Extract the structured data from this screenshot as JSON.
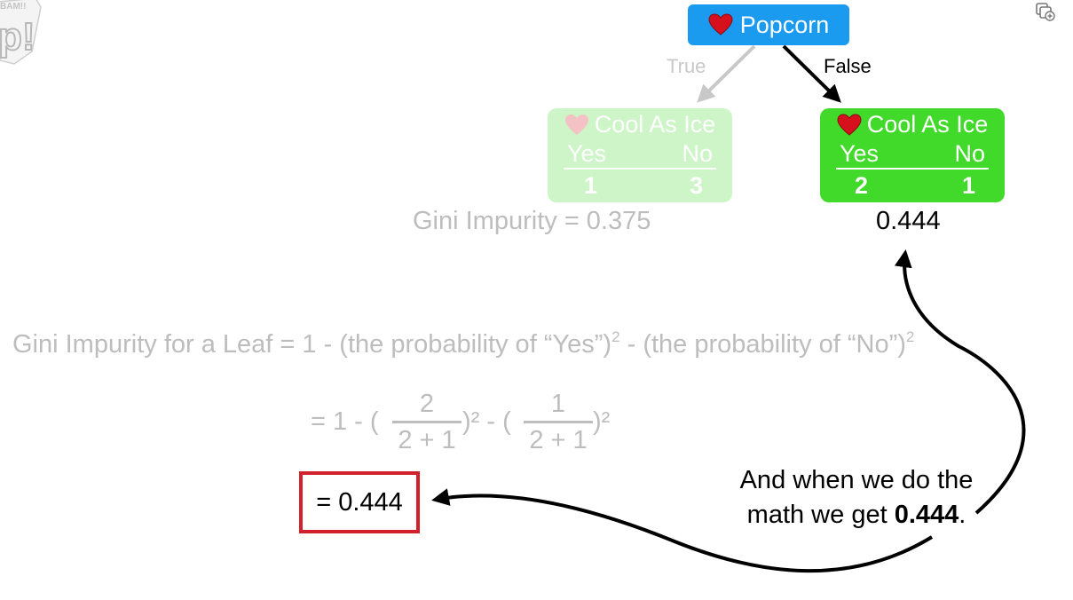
{
  "tree": {
    "root": {
      "label": "Popcorn"
    },
    "branches": {
      "true_label": "True",
      "false_label": "False"
    },
    "leaf_true": {
      "title": "Cool As Ice",
      "yes_label": "Yes",
      "no_label": "No",
      "yes_count": "1",
      "no_count": "3",
      "gini": "Gini Impurity = 0.375"
    },
    "leaf_false": {
      "title": "Cool As Ice",
      "yes_label": "Yes",
      "no_label": "No",
      "yes_count": "2",
      "no_count": "1",
      "gini": "0.444"
    }
  },
  "formula": {
    "part1": "Gini Impurity for a Leaf = 1 - (the probability of “Yes”)",
    "exp1": "2",
    "part2": " - (the probability of “No”)",
    "exp2": "2"
  },
  "math": {
    "prefix": "= 1 - (",
    "frac1_num": "2",
    "frac1_den": "2 + 1",
    "mid": ")² - (",
    "frac2_num": "1",
    "frac2_den": "2 + 1",
    "suffix": ")²"
  },
  "result": "= 0.444",
  "caption": {
    "line1": "And when we do the",
    "line2_prefix": "math we get ",
    "line2_bold": "0.444",
    "line2_suffix": "."
  },
  "colors": {
    "root_node": "#1a9bef",
    "leaf_node": "#41d92a",
    "heart": "#d6101c",
    "result_border": "#d0212d",
    "faded_text": "#bdbdbd"
  },
  "icons": {
    "root": "heart-icon",
    "leaf": "heart-icon",
    "top_right": "copy-add-icon",
    "logo": "bam-logo"
  }
}
